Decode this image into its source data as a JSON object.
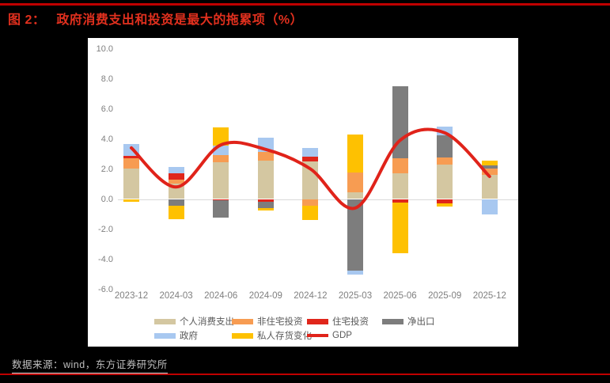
{
  "header": {
    "figure_label": "图 2：",
    "title": "政府消费支出和投资是最大的拖累项（%）"
  },
  "source": {
    "text": "数据来源：wind，东方证券研究所"
  },
  "colors": {
    "background": "#000000",
    "panel": "#ffffff",
    "title_red": "#e1301e",
    "rule_red": "#c00000",
    "axis_text": "#7f7f7f",
    "legend_text": "#595959",
    "zero_line": "#d9d9d9",
    "source_text": "#bfbfbf"
  },
  "chart_data": {
    "type": "bar",
    "subtype": "stacked-bars-with-smooth-line",
    "categories": [
      "2023-12",
      "2024-03",
      "2024-06",
      "2024-09",
      "2024-12",
      "2025-03",
      "2025-06",
      "2025-09",
      "2025-12"
    ],
    "series": [
      {
        "name": "个人消费支出",
        "color": "#d4c7a1",
        "values": [
          2.05,
          1.05,
          2.45,
          2.55,
          2.5,
          0.45,
          1.7,
          2.3,
          1.6
        ]
      },
      {
        "name": "非住宅投资",
        "color": "#f79c52",
        "values": [
          0.65,
          0.25,
          0.45,
          0.6,
          -0.45,
          1.3,
          1.0,
          0.45,
          0.45
        ]
      },
      {
        "name": "住宅投资",
        "color": "#e0261b",
        "values": [
          0.15,
          0.4,
          -0.1,
          -0.2,
          0.3,
          0.0,
          -0.25,
          -0.3,
          0.0
        ]
      },
      {
        "name": "净出口",
        "color": "#7d7d7d",
        "values": [
          0.0,
          -0.45,
          -1.15,
          -0.4,
          0.0,
          -4.75,
          4.8,
          1.5,
          0.2
        ]
      },
      {
        "name": "政府",
        "color": "#a8c8f0",
        "values": [
          0.8,
          0.45,
          0.65,
          0.95,
          0.6,
          -0.25,
          0.0,
          0.55,
          -1.0
        ]
      },
      {
        "name": "私人存货变化",
        "color": "#fec101",
        "values": [
          -0.2,
          -0.9,
          1.2,
          -0.15,
          -0.95,
          2.55,
          -3.35,
          -0.2,
          0.3
        ]
      }
    ],
    "line_series": {
      "name": "GDP",
      "color": "#e0231a",
      "values": [
        3.4,
        0.8,
        3.6,
        3.3,
        2.0,
        -0.6,
        3.9,
        4.4,
        1.5
      ]
    },
    "ylim": [
      -6,
      10
    ],
    "ytick_values": [
      10,
      8,
      6,
      4,
      2,
      0,
      -2,
      -4,
      -6
    ],
    "ytick_labels": [
      "10.0",
      "8.0",
      "6.0",
      "4.0",
      "2.0",
      "0.0",
      "-2.0",
      "-4.0",
      "-6.0"
    ],
    "grid": "zero-line-only",
    "legend_position": "bottom"
  }
}
